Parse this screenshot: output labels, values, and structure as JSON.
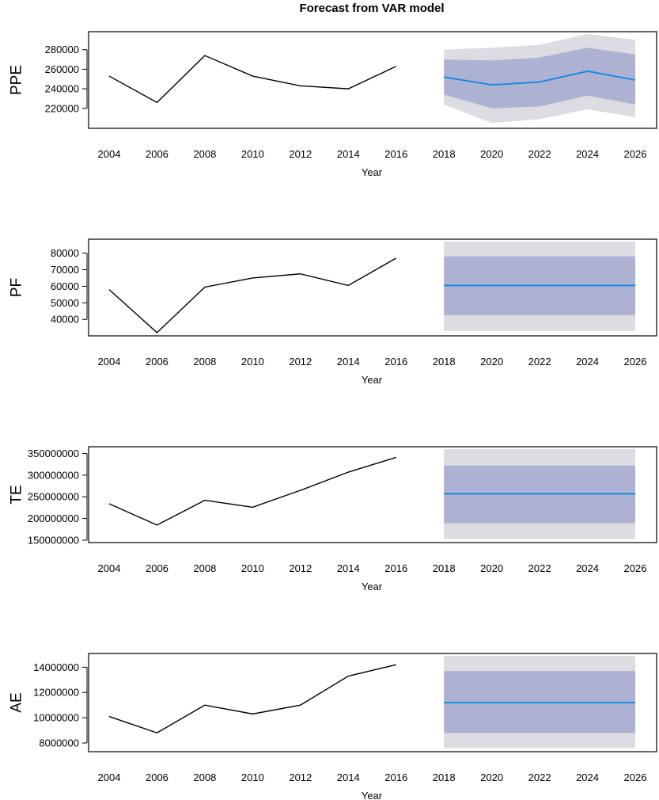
{
  "title": "Forecast from VAR model",
  "colors": {
    "history": "#000000",
    "forecast": "#1e88e5",
    "band_inner": "#aeb2d2",
    "band_outer": "#dcdce2"
  },
  "chart_data": [
    {
      "type": "line",
      "ylabel": "PPE",
      "xlabel": "Year",
      "xlim": [
        2004,
        2026
      ],
      "ylim": [
        202000,
        296000
      ],
      "xticks": [
        2004,
        2006,
        2008,
        2010,
        2012,
        2014,
        2016,
        2018,
        2020,
        2022,
        2024,
        2026
      ],
      "xtick_labels": [
        "2004",
        "2006",
        "2008",
        "2010",
        "2012",
        "2014",
        "2016",
        "2018",
        "2020",
        "2022",
        "2024",
        "2026"
      ],
      "yticks": [
        220000,
        240000,
        260000,
        280000
      ],
      "ytick_labels": [
        "220000",
        "240000",
        "260000",
        "280000"
      ],
      "series": [
        {
          "x": [
            2004,
            2006,
            2008,
            2010,
            2012,
            2014,
            2016
          ],
          "y": [
            253000,
            226000,
            274000,
            253000,
            243000,
            240000,
            263000
          ]
        },
        {
          "x": [
            2018,
            2020,
            2022,
            2024,
            2026
          ],
          "y": [
            252000,
            244000,
            247000,
            258000,
            249000
          ],
          "lower80": [
            234000,
            220000,
            222000,
            233000,
            224000
          ],
          "upper80": [
            270000,
            269000,
            272000,
            282000,
            275000
          ],
          "lower95": [
            224000,
            205000,
            209000,
            219000,
            211000
          ],
          "upper95": [
            280000,
            282000,
            285000,
            296000,
            290000
          ]
        }
      ]
    },
    {
      "type": "line",
      "ylabel": "PF",
      "xlabel": "Year",
      "xlim": [
        2004,
        2026
      ],
      "ylim": [
        31500,
        87000
      ],
      "xticks": [
        2004,
        2006,
        2008,
        2010,
        2012,
        2014,
        2016,
        2018,
        2020,
        2022,
        2024,
        2026
      ],
      "xtick_labels": [
        "2004",
        "2006",
        "2008",
        "2010",
        "2012",
        "2014",
        "2016",
        "2018",
        "2020",
        "2022",
        "2024",
        "2026"
      ],
      "yticks": [
        40000,
        50000,
        60000,
        70000,
        80000
      ],
      "ytick_labels": [
        "40000",
        "50000",
        "60000",
        "70000",
        "80000"
      ],
      "series": [
        {
          "x": [
            2004,
            2006,
            2008,
            2010,
            2012,
            2014,
            2016
          ],
          "y": [
            58000,
            32000,
            59500,
            65000,
            67500,
            60500,
            77000
          ]
        },
        {
          "x": [
            2018,
            2020,
            2022,
            2024,
            2026
          ],
          "y": [
            60500,
            60500,
            60500,
            60500,
            60500
          ],
          "lower80": [
            42500,
            42500,
            42500,
            42500,
            42500
          ],
          "upper80": [
            78000,
            78000,
            78000,
            78000,
            78000
          ],
          "lower95": [
            33000,
            33000,
            33000,
            33000,
            33000
          ],
          "upper95": [
            87000,
            87000,
            87000,
            87000,
            87000
          ]
        }
      ]
    },
    {
      "type": "line",
      "ylabel": "TE",
      "xlabel": "Year",
      "xlim": [
        2004,
        2026
      ],
      "ylim": [
        150000000,
        360000000
      ],
      "xticks": [
        2004,
        2006,
        2008,
        2010,
        2012,
        2014,
        2016,
        2018,
        2020,
        2022,
        2024,
        2026
      ],
      "xtick_labels": [
        "2004",
        "2006",
        "2008",
        "2010",
        "2012",
        "2014",
        "2016",
        "2018",
        "2020",
        "2022",
        "2024",
        "2026"
      ],
      "yticks": [
        150000000,
        200000000,
        250000000,
        300000000,
        350000000
      ],
      "ytick_labels": [
        "150000000",
        "200000000",
        "250000000",
        "300000000",
        "350000000"
      ],
      "series": [
        {
          "x": [
            2004,
            2006,
            2008,
            2010,
            2012,
            2014,
            2016
          ],
          "y": [
            234000000,
            185000000,
            242000000,
            226000000,
            265000000,
            307000000,
            341000000
          ]
        },
        {
          "x": [
            2018,
            2020,
            2022,
            2024,
            2026
          ],
          "y": [
            257000000,
            257000000,
            257000000,
            257000000,
            257000000
          ],
          "lower80": [
            189000000,
            189000000,
            189000000,
            189000000,
            189000000
          ],
          "upper80": [
            322000000,
            322000000,
            322000000,
            322000000,
            322000000
          ],
          "lower95": [
            153000000,
            153000000,
            153000000,
            153000000,
            153000000
          ],
          "upper95": [
            360000000,
            360000000,
            360000000,
            360000000,
            360000000
          ]
        }
      ]
    },
    {
      "type": "line",
      "ylabel": "AE",
      "xlabel": "Year",
      "xlim": [
        2004,
        2026
      ],
      "ylim": [
        7500000,
        14900000
      ],
      "xticks": [
        2004,
        2006,
        2008,
        2010,
        2012,
        2014,
        2016,
        2018,
        2020,
        2022,
        2024,
        2026
      ],
      "xtick_labels": [
        "2004",
        "2006",
        "2008",
        "2010",
        "2012",
        "2014",
        "2016",
        "2018",
        "2020",
        "2022",
        "2024",
        "2026"
      ],
      "yticks": [
        8000000,
        10000000,
        12000000,
        14000000
      ],
      "ytick_labels": [
        "8000000",
        "10000000",
        "12000000",
        "14000000"
      ],
      "series": [
        {
          "x": [
            2004,
            2006,
            2008,
            2010,
            2012,
            2014,
            2016
          ],
          "y": [
            10100000,
            8800000,
            11000000,
            10300000,
            11000000,
            13300000,
            14200000
          ]
        },
        {
          "x": [
            2018,
            2020,
            2022,
            2024,
            2026
          ],
          "y": [
            11200000,
            11200000,
            11200000,
            11200000,
            11200000
          ],
          "lower80": [
            8800000,
            8800000,
            8800000,
            8800000,
            8800000
          ],
          "upper80": [
            13700000,
            13700000,
            13700000,
            13700000,
            13700000
          ],
          "lower95": [
            7600000,
            7600000,
            7600000,
            7600000,
            7600000
          ],
          "upper95": [
            14900000,
            14900000,
            14900000,
            14900000,
            14900000
          ]
        }
      ]
    }
  ]
}
